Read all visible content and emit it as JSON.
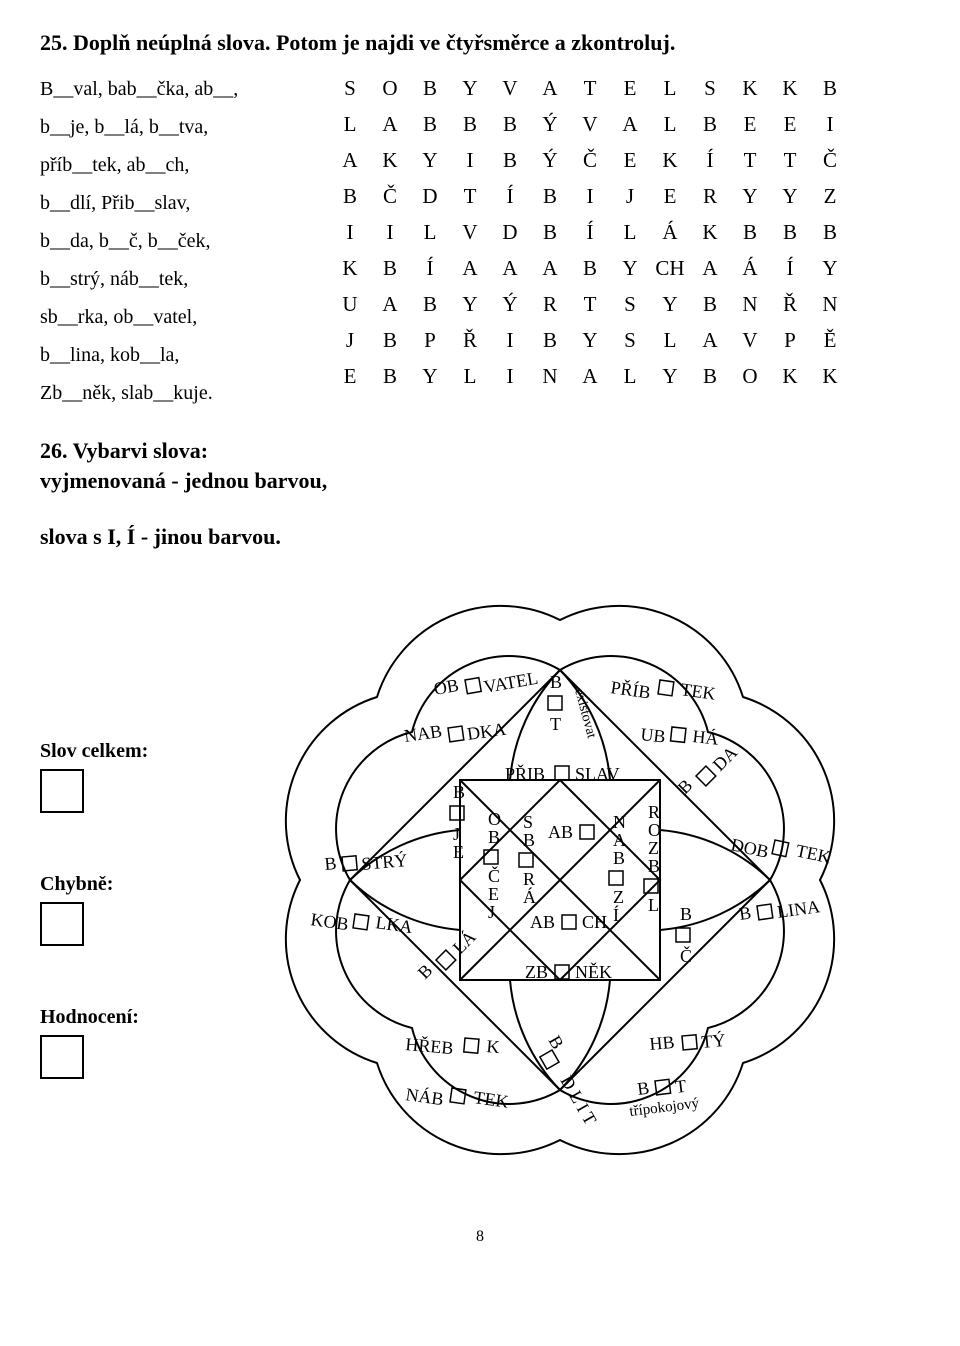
{
  "ex25": {
    "title": "25. Doplň neúplná slova. Potom je najdi ve čtyřsměrce a zkontroluj.",
    "words": [
      "B__val, bab__čka, ab__,",
      "b__je, b__lá, b__tva,",
      "příb__tek, ab__ch,",
      "b__dlí, Přib__slav,",
      "b__da, b__č, b__ček,",
      "b__strý, náb__tek,",
      "sb__rka, ob__vatel,",
      "b__lina, kob__la,",
      "Zb__něk, slab__kuje."
    ],
    "grid": {
      "cols": 13,
      "rows": 9,
      "cells": [
        [
          "S",
          "O",
          "B",
          "Y",
          "V",
          "A",
          "T",
          "E",
          "L",
          "S",
          "K",
          "K",
          "B"
        ],
        [
          "L",
          "A",
          "B",
          "B",
          "B",
          "Ý",
          "V",
          "A",
          "L",
          "B",
          "E",
          "E",
          "I"
        ],
        [
          "A",
          "K",
          "Y",
          "I",
          "B",
          "Ý",
          "Č",
          "E",
          "K",
          "Í",
          "T",
          "T",
          "Č"
        ],
        [
          "B",
          "Č",
          "D",
          "T",
          "Í",
          "B",
          "I",
          "J",
          "E",
          "R",
          "Y",
          "Y",
          "Z"
        ],
        [
          "I",
          "I",
          "L",
          "V",
          "D",
          "B",
          "Í",
          "L",
          "Á",
          "K",
          "B",
          "B",
          "B"
        ],
        [
          "K",
          "B",
          "Í",
          "A",
          "A",
          "A",
          "B",
          "Y",
          "CH",
          "A",
          "Á",
          "Í",
          "Y"
        ],
        [
          "U",
          "A",
          "B",
          "Y",
          "Ý",
          "R",
          "T",
          "S",
          "Y",
          "B",
          "N",
          "Ř",
          "N"
        ],
        [
          "J",
          "B",
          "P",
          "Ř",
          "I",
          "B",
          "Y",
          "S",
          "L",
          "A",
          "V",
          "P",
          "Ě"
        ],
        [
          "E",
          "B",
          "Y",
          "L",
          "I",
          "N",
          "A",
          "L",
          "Y",
          "B",
          "O",
          "K",
          "K"
        ]
      ]
    }
  },
  "ex26": {
    "title": "26. Vybarvi slova:",
    "line2": "vyjmenovaná - jednou barvou,",
    "line3": "slova s I, Í - jinou barvou.",
    "labels": {
      "slov": "Slov celkem:",
      "chyb": "Chybně:",
      "hod": "Hodnocení:"
    },
    "fig_words": {
      "obvatel": "OB□VATEL",
      "nabdka": "NAB□DKA",
      "bt_exist": "B□T  existovat",
      "pribtek": "PŘÍB□TEK",
      "ubha": "UB□HÁ",
      "bstry": "B□STRÝ",
      "koblka": "KOB□LKA",
      "bje": "B□JE",
      "obcej": "OB□ČEJ",
      "bla": "B□LÁ",
      "pribslav": "PŘIB□SLAV",
      "sbra": "SB□RÁ",
      "ab_": "AB□",
      "abch": "AB□CH",
      "nabzi": "NAB□ZÍ",
      "zbnek": "ZB□NĚK",
      "rozbl": "ROZB□L",
      "bda": "B□DA",
      "bc": "B□Č",
      "dobtek": "DOB□TEK",
      "blina": "B□LINA",
      "hrebk": "HŘEB□K",
      "nabtek": "NÁB□TEK",
      "bdlit": "B□DLIT",
      "hbty": "HB□TÝ",
      "bt_tri": "B□T třípokojový"
    }
  },
  "pagenum": "8",
  "colors": {
    "bg": "#ffffff",
    "fg": "#000000"
  }
}
